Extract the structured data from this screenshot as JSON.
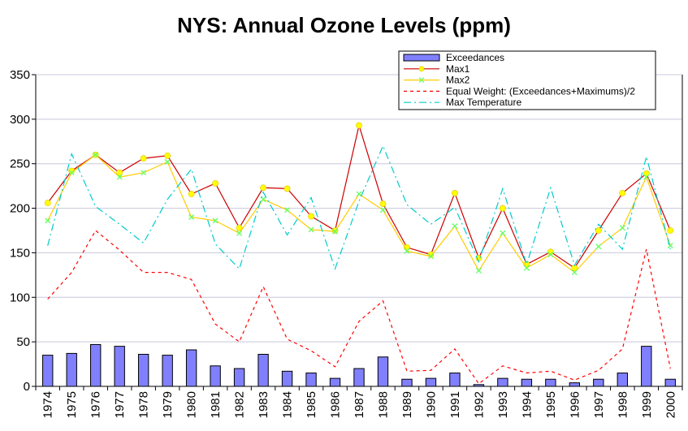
{
  "chart_data": {
    "type": "bar",
    "title": "NYS: Annual Ozone Levels (ppm)",
    "categories": [
      "1974",
      "1975",
      "1976",
      "1977",
      "1978",
      "1979",
      "1980",
      "1981",
      "1982",
      "1983",
      "1984",
      "1985",
      "1986",
      "1987",
      "1988",
      "1989",
      "1990",
      "1991",
      "1992",
      "1993",
      "1994",
      "1995",
      "1996",
      "1997",
      "1998",
      "1999",
      "2000"
    ],
    "ylim": [
      0,
      350
    ],
    "yticks": [
      "0",
      "50",
      "100",
      "150",
      "200",
      "250",
      "300",
      "350"
    ],
    "ytick_values": [
      0,
      50,
      100,
      150,
      200,
      250,
      300,
      350
    ],
    "grid": true,
    "legend_position": "top-right",
    "series": [
      {
        "name": "Exceedances",
        "type": "bar",
        "color": "#8080ff",
        "values": [
          35,
          37,
          47,
          45,
          36,
          35,
          41,
          23,
          20,
          36,
          17,
          15,
          9,
          20,
          33,
          8,
          9,
          15,
          2,
          9,
          8,
          8,
          4,
          8,
          15,
          45,
          8
        ]
      },
      {
        "name": "Max1",
        "type": "line",
        "color": "#cc0000",
        "marker": "#ffff00",
        "values": [
          206,
          242,
          260,
          240,
          256,
          259,
          216,
          228,
          178,
          223,
          222,
          191,
          175,
          293,
          205,
          156,
          148,
          217,
          144,
          200,
          137,
          151,
          133,
          175,
          217,
          239,
          175
        ]
      },
      {
        "name": "Max2",
        "type": "line",
        "color": "#ffcc00",
        "marker": "#66ff66",
        "values": [
          186,
          240,
          260,
          235,
          240,
          252,
          190,
          186,
          172,
          210,
          198,
          176,
          174,
          216,
          198,
          152,
          146,
          180,
          130,
          172,
          133,
          148,
          128,
          157,
          178,
          235,
          158
        ]
      },
      {
        "name": "Equal Weight: (Exceedances+Maximums)/2",
        "type": "line",
        "style": "dashed",
        "color": "#ff0000",
        "values": [
          98,
          128,
          175,
          153,
          128,
          128,
          120,
          70,
          50,
          112,
          53,
          40,
          22,
          73,
          96,
          17,
          18,
          42,
          3,
          23,
          15,
          17,
          7,
          18,
          42,
          154,
          20
        ]
      },
      {
        "name": "Max Temperature",
        "type": "line",
        "style": "dashdot",
        "color": "#00cccc",
        "values": [
          158,
          261,
          202,
          182,
          161,
          210,
          244,
          160,
          132,
          218,
          170,
          212,
          132,
          208,
          270,
          204,
          182,
          201,
          140,
          222,
          137,
          223,
          136,
          182,
          154,
          258,
          154
        ]
      }
    ]
  }
}
